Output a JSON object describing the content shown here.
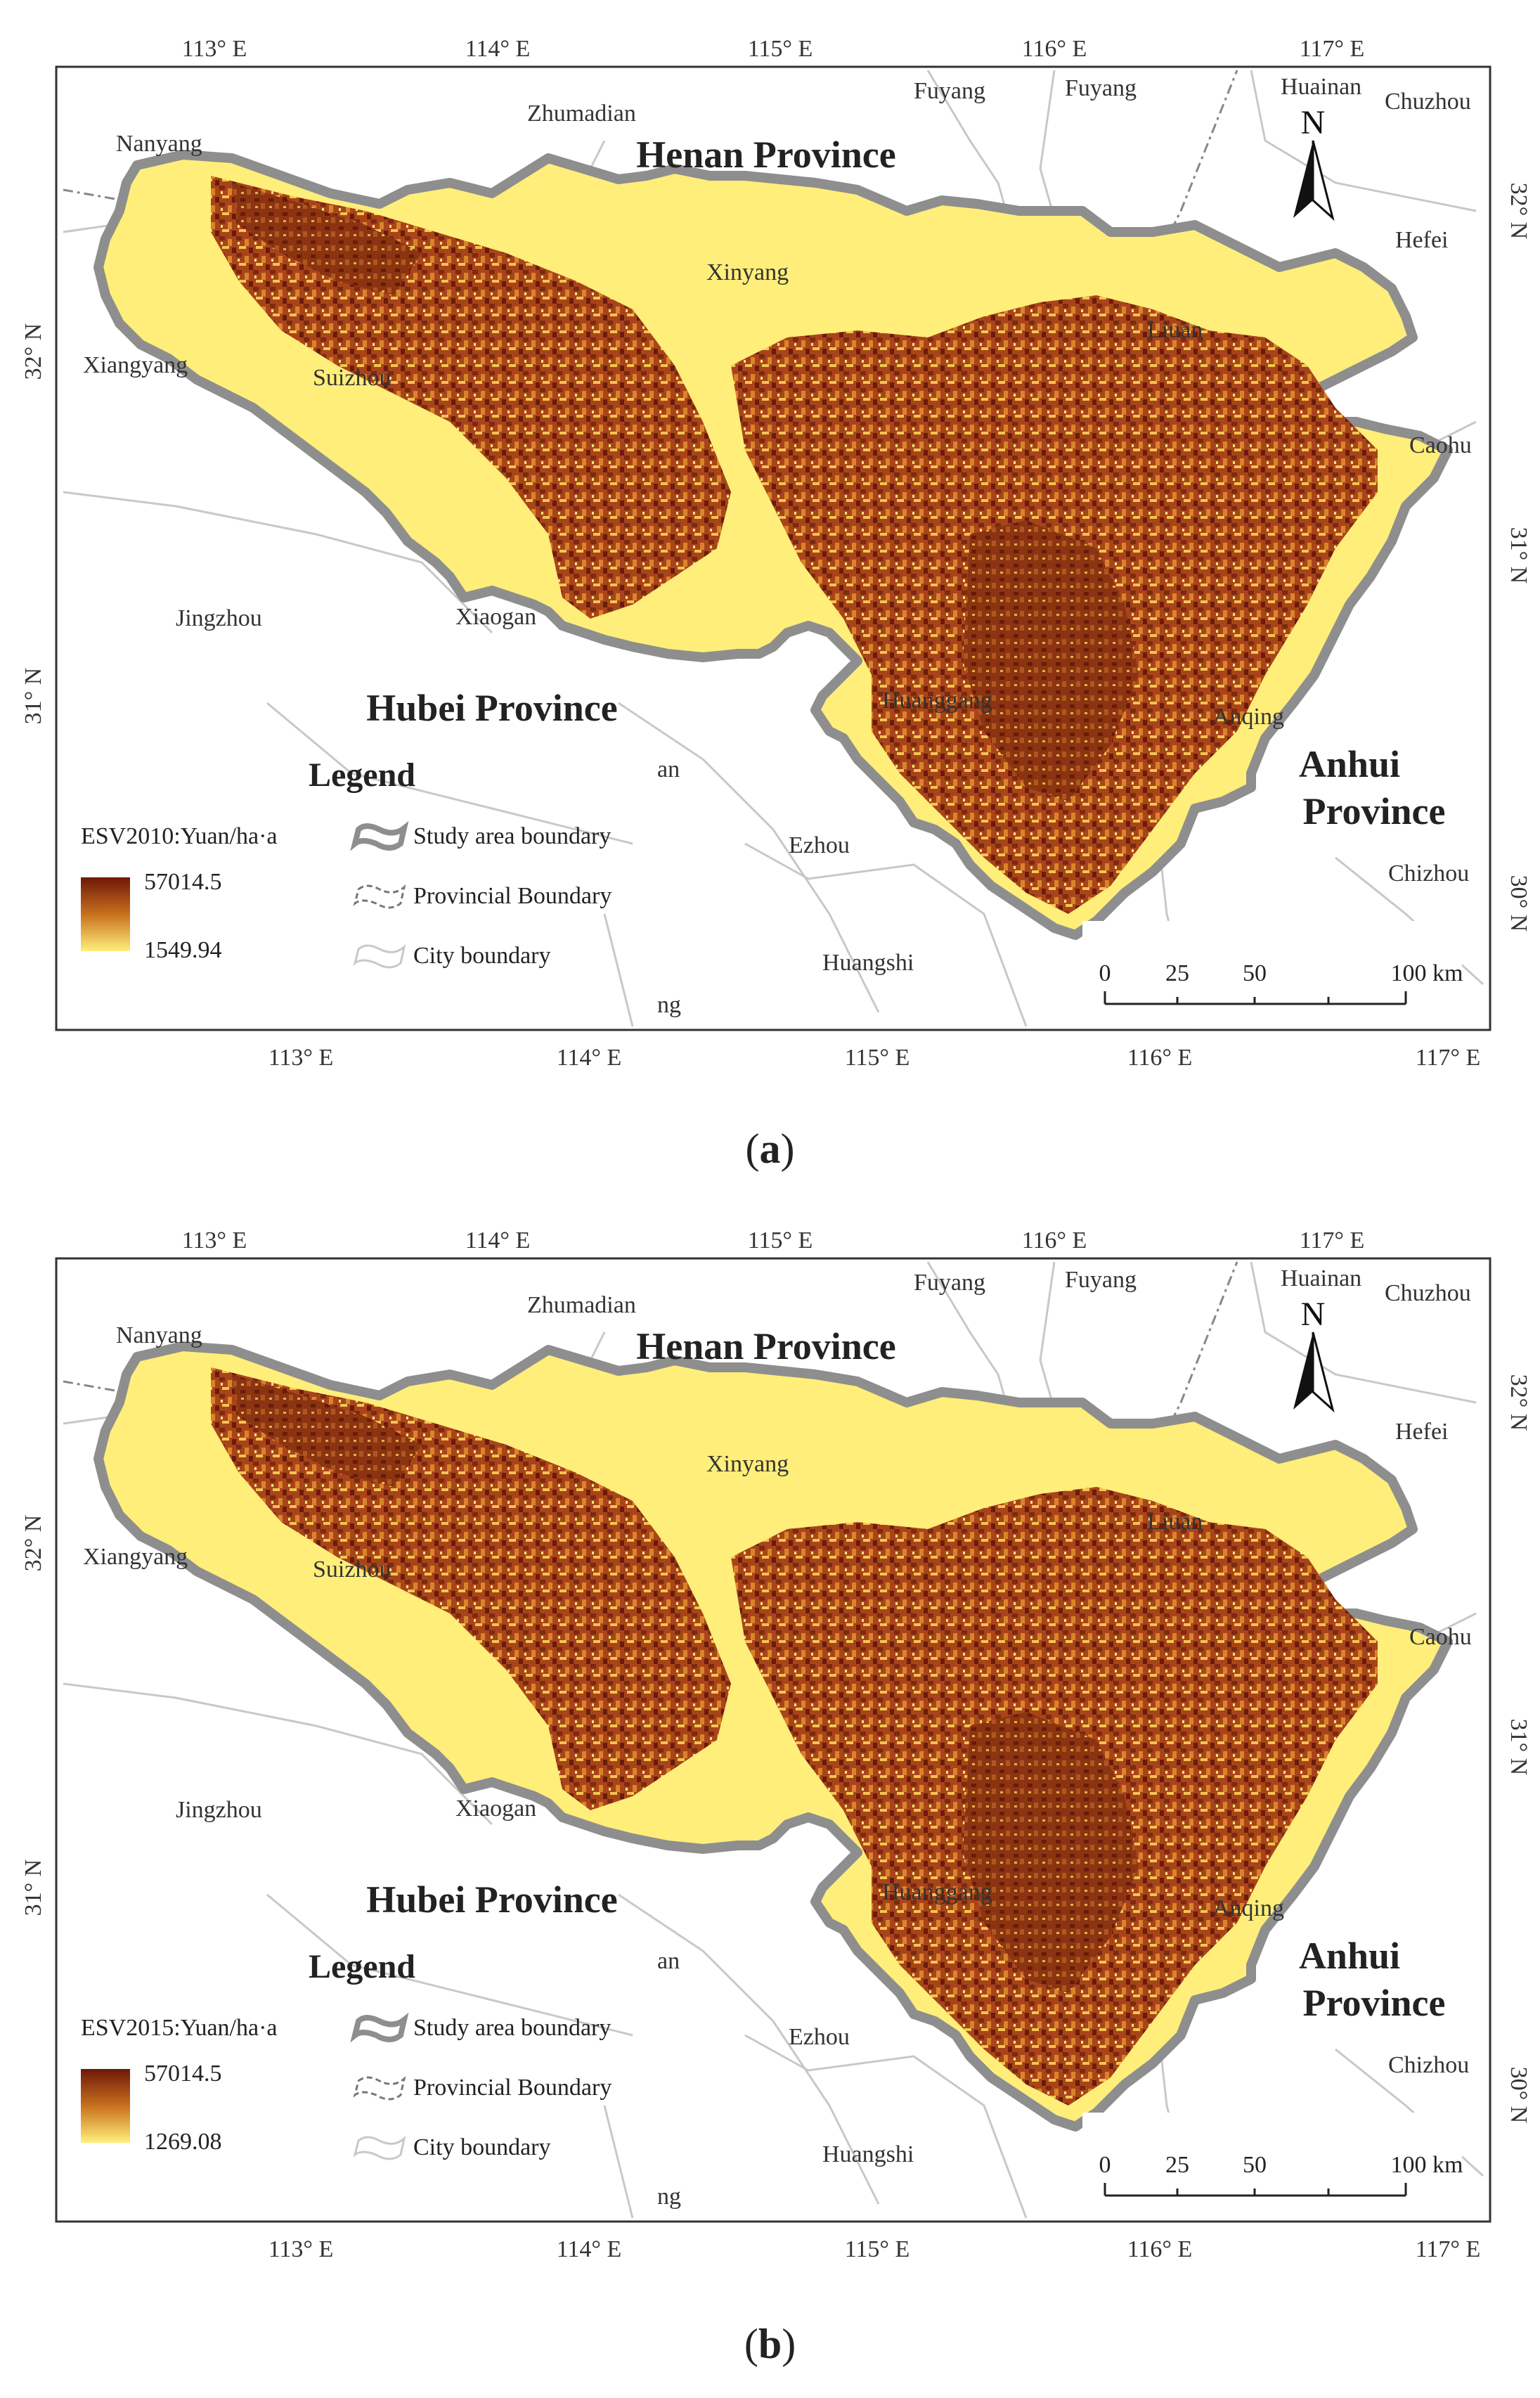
{
  "panels": [
    {
      "id": "a",
      "caption_letter": "a",
      "legend": {
        "title": "Legend",
        "esv_label": "ESV2010:Yuan/ha·a",
        "max_value": "57014.5",
        "min_value": "1549.94",
        "items": [
          "Study area boundary",
          "Provincial Boundary",
          "City boundary"
        ]
      }
    },
    {
      "id": "b",
      "caption_letter": "b",
      "legend": {
        "title": "Legend",
        "esv_label": "ESV2015:Yuan/ha·a",
        "max_value": "57014.5",
        "min_value": "1269.08",
        "items": [
          "Study area boundary",
          "Provincial Boundary",
          "City boundary"
        ]
      }
    }
  ],
  "map": {
    "provinces": {
      "henan": "Henan Province",
      "hubei": "Hubei Province",
      "anhui_1": "Anhui",
      "anhui_2": "Province"
    },
    "cities": {
      "nanyang": "Nanyang",
      "zhumadian": "Zhumadian",
      "fuyang_1": "Fuyang",
      "fuyang_2": "Fuyang",
      "huainan": "Huainan",
      "chuzhou": "Chuzhou",
      "hefei": "Hefei",
      "xinyang": "Xinyang",
      "xiangyang": "Xiangyang",
      "suizhou": "Suizhou",
      "luan": "Liuan",
      "caohu": "Caohu",
      "jingzhou": "Jingzhou",
      "xiaogan": "Xiaogan",
      "huanggang": "Huanggang",
      "anqing": "Anqing",
      "ezhou": "Ezhou",
      "chizhou": "Chizhou",
      "huangshi": "Huangshi",
      "wuhan_fragment": "an",
      "xianning_fragment": "ng"
    },
    "north_arrow": "N",
    "scale": {
      "ticks": [
        "0",
        "25",
        "50",
        "100 km"
      ]
    },
    "lon_top": [
      "113° E",
      "114° E",
      "115° E",
      "116° E",
      "117° E"
    ],
    "lon_bottom": [
      "113° E",
      "114° E",
      "115° E",
      "116° E",
      "117° E"
    ],
    "lat_left": [
      "32° N",
      "31° N"
    ],
    "lat_right": [
      "32° N",
      "31° N",
      "30° N"
    ],
    "colors": {
      "esv_high": "#7a1e0c",
      "esv_mid": "#c46a1e",
      "esv_low": "#ffef8a",
      "study_boundary": "#9a9a9a",
      "city_boundary": "#c8c8c8"
    }
  }
}
